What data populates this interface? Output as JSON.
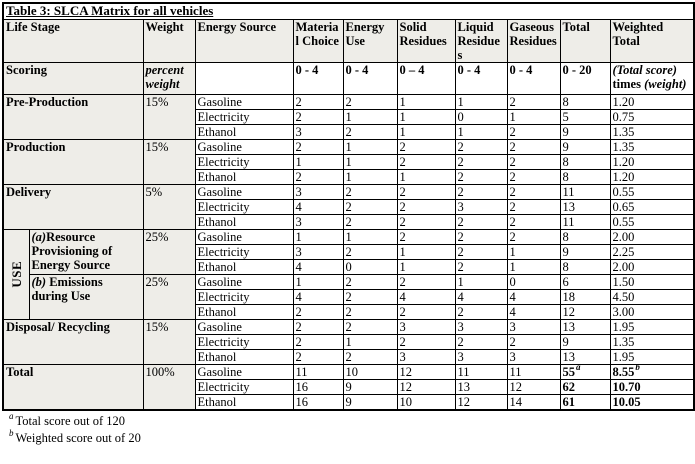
{
  "title": "Table 3: SLCA Matrix for all vehicles",
  "columns": {
    "life_stage": "Life Stage",
    "weight": "Weight",
    "energy_source": "Energy Source",
    "material_choice": "Material Choice",
    "energy_use": "Energy Use",
    "solid_residues": "Solid Residues",
    "liquid_residues": "Liquid Residues",
    "gaseous_residues": "Gaseous Residues",
    "total": "Total",
    "weighted_total": "Weighted Total"
  },
  "scoring": {
    "label": "Scoring",
    "weight": "percent weight",
    "ranges": [
      "0 - 4",
      "0 - 4",
      "0 – 4",
      "0 - 4",
      "0 - 4",
      "0 - 20"
    ],
    "weighted_parts": [
      "(Total score)",
      "times",
      "(weight)"
    ]
  },
  "use_group_label": "USE",
  "sections": [
    {
      "type": "plain",
      "label": "Pre-Production",
      "weight": "15%",
      "rows": [
        {
          "source": "Gasoline",
          "values": [
            "2",
            "2",
            "1",
            "1",
            "2"
          ],
          "total": "8",
          "weighted": "1.20"
        },
        {
          "source": "Electricity",
          "values": [
            "2",
            "1",
            "1",
            "0",
            "1"
          ],
          "total": "5",
          "weighted": "0.75"
        },
        {
          "source": "Ethanol",
          "values": [
            "3",
            "2",
            "1",
            "1",
            "2"
          ],
          "total": "9",
          "weighted": "1.35"
        }
      ]
    },
    {
      "type": "plain",
      "label": "Production",
      "weight": "15%",
      "rows": [
        {
          "source": "Gasoline",
          "values": [
            "2",
            "1",
            "2",
            "2",
            "2"
          ],
          "total": "9",
          "weighted": "1.35"
        },
        {
          "source": "Electricity",
          "values": [
            "1",
            "1",
            "2",
            "2",
            "2"
          ],
          "total": "8",
          "weighted": "1.20"
        },
        {
          "source": "Ethanol",
          "values": [
            "2",
            "1",
            "1",
            "2",
            "2"
          ],
          "total": "8",
          "weighted": "1.20"
        }
      ]
    },
    {
      "type": "plain",
      "label": "Delivery",
      "weight": "5%",
      "rows": [
        {
          "source": "Gasoline",
          "values": [
            "3",
            "2",
            "2",
            "2",
            "2"
          ],
          "total": "11",
          "weighted": "0.55"
        },
        {
          "source": "Electricity",
          "values": [
            "4",
            "2",
            "2",
            "3",
            "2"
          ],
          "total": "13",
          "weighted": "0.65"
        },
        {
          "source": "Ethanol",
          "values": [
            "3",
            "2",
            "2",
            "2",
            "2"
          ],
          "total": "11",
          "weighted": "0.55"
        }
      ]
    },
    {
      "type": "use-a",
      "label_prefix": "(a)",
      "label": "Resource Provisioning of Energy Source",
      "weight": "25%",
      "rows": [
        {
          "source": "Gasoline",
          "values": [
            "1",
            "1",
            "2",
            "2",
            "2"
          ],
          "total": "8",
          "weighted": "2.00"
        },
        {
          "source": "Electricity",
          "values": [
            "3",
            "2",
            "1",
            "2",
            "1"
          ],
          "total": "9",
          "weighted": "2.25"
        },
        {
          "source": "Ethanol",
          "values": [
            "4",
            "0",
            "1",
            "2",
            "1"
          ],
          "total": "8",
          "weighted": "2.00"
        }
      ]
    },
    {
      "type": "use-b",
      "label_prefix": "(b) ",
      "label": "Emissions during Use",
      "weight": "25%",
      "rows": [
        {
          "source": "Gasoline",
          "values": [
            "1",
            "2",
            "2",
            "1",
            "0"
          ],
          "total": "6",
          "weighted": "1.50"
        },
        {
          "source": "Electricity",
          "values": [
            "4",
            "2",
            "4",
            "4",
            "4"
          ],
          "total": "18",
          "weighted": "4.50"
        },
        {
          "source": "Ethanol",
          "values": [
            "2",
            "2",
            "2",
            "2",
            "4"
          ],
          "total": "12",
          "weighted": "3.00"
        }
      ]
    },
    {
      "type": "plain",
      "label": "Disposal/ Recycling",
      "weight": "15%",
      "rows": [
        {
          "source": "Gasoline",
          "values": [
            "2",
            "2",
            "3",
            "3",
            "3"
          ],
          "total": "13",
          "weighted": "1.95"
        },
        {
          "source": "Electricity",
          "values": [
            "2",
            "1",
            "2",
            "2",
            "2"
          ],
          "total": "9",
          "weighted": "1.35"
        },
        {
          "source": "Ethanol",
          "values": [
            "2",
            "2",
            "3",
            "3",
            "3"
          ],
          "total": "13",
          "weighted": "1.95"
        }
      ]
    },
    {
      "type": "total",
      "label": "Total",
      "weight": "100%",
      "rows": [
        {
          "source": "Gasoline",
          "values": [
            "11",
            "10",
            "12",
            "11",
            "11"
          ],
          "total": "55",
          "total_sup": "a",
          "weighted": "8.55",
          "weighted_sup": "b"
        },
        {
          "source": "Electricity",
          "values": [
            "16",
            "9",
            "12",
            "13",
            "12"
          ],
          "total": "62",
          "weighted": "10.70"
        },
        {
          "source": "Ethanol",
          "values": [
            "16",
            "9",
            "10",
            "12",
            "14"
          ],
          "total": "61",
          "weighted": "10.05"
        }
      ]
    }
  ],
  "footnotes": [
    {
      "sup": "a",
      "text": "Total score out of 120"
    },
    {
      "sup": "b",
      "text": "Weighted score out of 20"
    }
  ]
}
